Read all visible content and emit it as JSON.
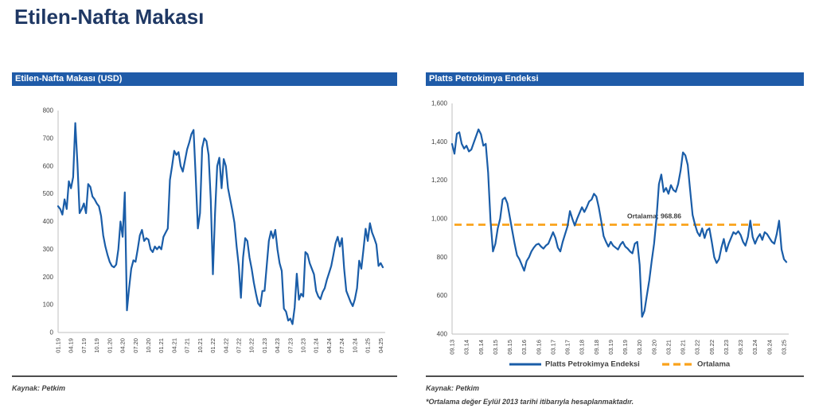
{
  "page": {
    "title": "Etilen-Nafta Makası"
  },
  "colors": {
    "title_navy": "#1f3864",
    "header_bar_blue": "#1f5ba8",
    "line_blue": "#1a5da8",
    "average_orange": "#faa21b",
    "axis_gray": "#bfbfbf",
    "text_gray": "#404040",
    "separator_gray": "#4d4d4d"
  },
  "left_panel": {
    "header": "Etilen-Nafta Makası (USD)",
    "source_note": "Kaynak: Petkim"
  },
  "right_panel": {
    "header": "Platts Petrokimya Endeksi",
    "source_note": "Kaynak: Petkim",
    "footnote": "*Ortalama değer Eylül 2013 tarihi itibarıyla hesaplanmaktadır."
  },
  "chart_data": [
    {
      "type": "line",
      "title": "Etilen-Nafta Makası (USD)",
      "xlabel": "",
      "ylabel": "",
      "grid": false,
      "legend_position": "none",
      "ylim": [
        0,
        800
      ],
      "yticks": [
        0,
        100,
        200,
        300,
        400,
        500,
        600,
        700,
        800
      ],
      "ytick_labels": [
        "0",
        "100",
        "200",
        "300",
        "400",
        "500",
        "600",
        "700",
        "800"
      ],
      "x_tick_labels": [
        "01.19",
        "04.19",
        "07.19",
        "10.19",
        "01.20",
        "04.20",
        "07.20",
        "10.20",
        "01.21",
        "04.21",
        "07.21",
        "10.21",
        "01.22",
        "04.22",
        "07.22",
        "10.22",
        "01.23",
        "04.23",
        "07.23",
        "10.23",
        "01.24",
        "04.24",
        "07.24",
        "10.24",
        "01.25",
        "04.25"
      ],
      "points_per_tick": 6,
      "x_resolution": "semi-monthly (2 points per month), Jan 2019 - Apr 2025",
      "series": [
        {
          "name": "Etilen-Nafta Makası (USD)",
          "color": "#1a5da8",
          "values": [
            455,
            445,
            425,
            480,
            445,
            545,
            520,
            560,
            755,
            610,
            430,
            445,
            465,
            430,
            535,
            525,
            490,
            480,
            465,
            455,
            420,
            350,
            310,
            280,
            255,
            240,
            235,
            245,
            300,
            400,
            345,
            505,
            80,
            160,
            230,
            260,
            255,
            300,
            350,
            370,
            330,
            340,
            335,
            300,
            290,
            310,
            300,
            310,
            300,
            345,
            360,
            375,
            550,
            600,
            655,
            640,
            650,
            600,
            580,
            620,
            660,
            685,
            715,
            730,
            560,
            375,
            430,
            665,
            700,
            690,
            640,
            480,
            210,
            430,
            600,
            630,
            520,
            625,
            600,
            520,
            480,
            440,
            395,
            310,
            240,
            125,
            270,
            340,
            330,
            270,
            230,
            180,
            140,
            105,
            95,
            150,
            150,
            240,
            330,
            365,
            340,
            370,
            300,
            250,
            222,
            86,
            75,
            43,
            50,
            30,
            90,
            212,
            118,
            140,
            130,
            290,
            282,
            250,
            230,
            210,
            150,
            130,
            120,
            145,
            160,
            190,
            215,
            240,
            280,
            322,
            345,
            310,
            340,
            230,
            150,
            130,
            110,
            95,
            120,
            160,
            259,
            230,
            300,
            374,
            330,
            394,
            360,
            340,
            317,
            240,
            250,
            235
          ]
        }
      ]
    },
    {
      "type": "line",
      "title": "Platts Petrokimya Endeksi",
      "xlabel": "",
      "ylabel": "",
      "grid": false,
      "legend_position": "bottom",
      "ylim": [
        400,
        1600
      ],
      "yticks": [
        400,
        600,
        800,
        1000,
        1200,
        1400,
        1600
      ],
      "ytick_labels": [
        "400",
        "600",
        "800",
        "1,000",
        "1,200",
        "1,400",
        "1,600"
      ],
      "x_tick_labels": [
        "09.13",
        "03.14",
        "09.14",
        "03.15",
        "09.15",
        "03.16",
        "09.16",
        "03.17",
        "09.17",
        "03.18",
        "09.18",
        "03.19",
        "09.19",
        "03.20",
        "09.20",
        "03.21",
        "09.21",
        "03.22",
        "09.22",
        "03.23",
        "09.23",
        "03.24",
        "09.24",
        "03.25"
      ],
      "points_per_tick": 6,
      "x_resolution": "monthly, Sep 2013 - Apr 2025",
      "series": [
        {
          "name": "Platts Petrokimya Endeksi",
          "color": "#1a5da8",
          "values": [
            1389,
            1338,
            1442,
            1450,
            1390,
            1365,
            1380,
            1350,
            1360,
            1395,
            1430,
            1465,
            1440,
            1380,
            1390,
            1240,
            990,
            830,
            870,
            950,
            1000,
            1100,
            1110,
            1080,
            1010,
            940,
            870,
            810,
            790,
            760,
            730,
            780,
            800,
            830,
            850,
            865,
            870,
            855,
            845,
            860,
            870,
            900,
            930,
            900,
            850,
            830,
            880,
            920,
            960,
            1040,
            1000,
            965,
            1000,
            1030,
            1060,
            1035,
            1060,
            1090,
            1100,
            1130,
            1115,
            1060,
            990,
            910,
            880,
            855,
            880,
            860,
            850,
            840,
            865,
            880,
            855,
            845,
            830,
            820,
            870,
            880,
            760,
            490,
            520,
            600,
            680,
            780,
            870,
            1000,
            1180,
            1230,
            1140,
            1160,
            1130,
            1175,
            1150,
            1140,
            1180,
            1250,
            1345,
            1330,
            1280,
            1150,
            1020,
            970,
            930,
            910,
            950,
            900,
            940,
            950,
            880,
            800,
            770,
            790,
            850,
            895,
            830,
            870,
            900,
            930,
            920,
            935,
            915,
            880,
            860,
            905,
            990,
            905,
            870,
            900,
            920,
            890,
            930,
            920,
            900,
            880,
            870,
            920,
            990,
            840,
            790,
            775
          ]
        }
      ],
      "average_line": {
        "value": 968.86,
        "color": "#faa21b",
        "label": "Ortalama; 968.86"
      },
      "legend_items": [
        {
          "label": "Platts Petrokimya Endeksi",
          "style": "solid",
          "color": "#1a5da8"
        },
        {
          "label": "Ortalama",
          "style": "dashed",
          "color": "#faa21b"
        }
      ]
    }
  ]
}
